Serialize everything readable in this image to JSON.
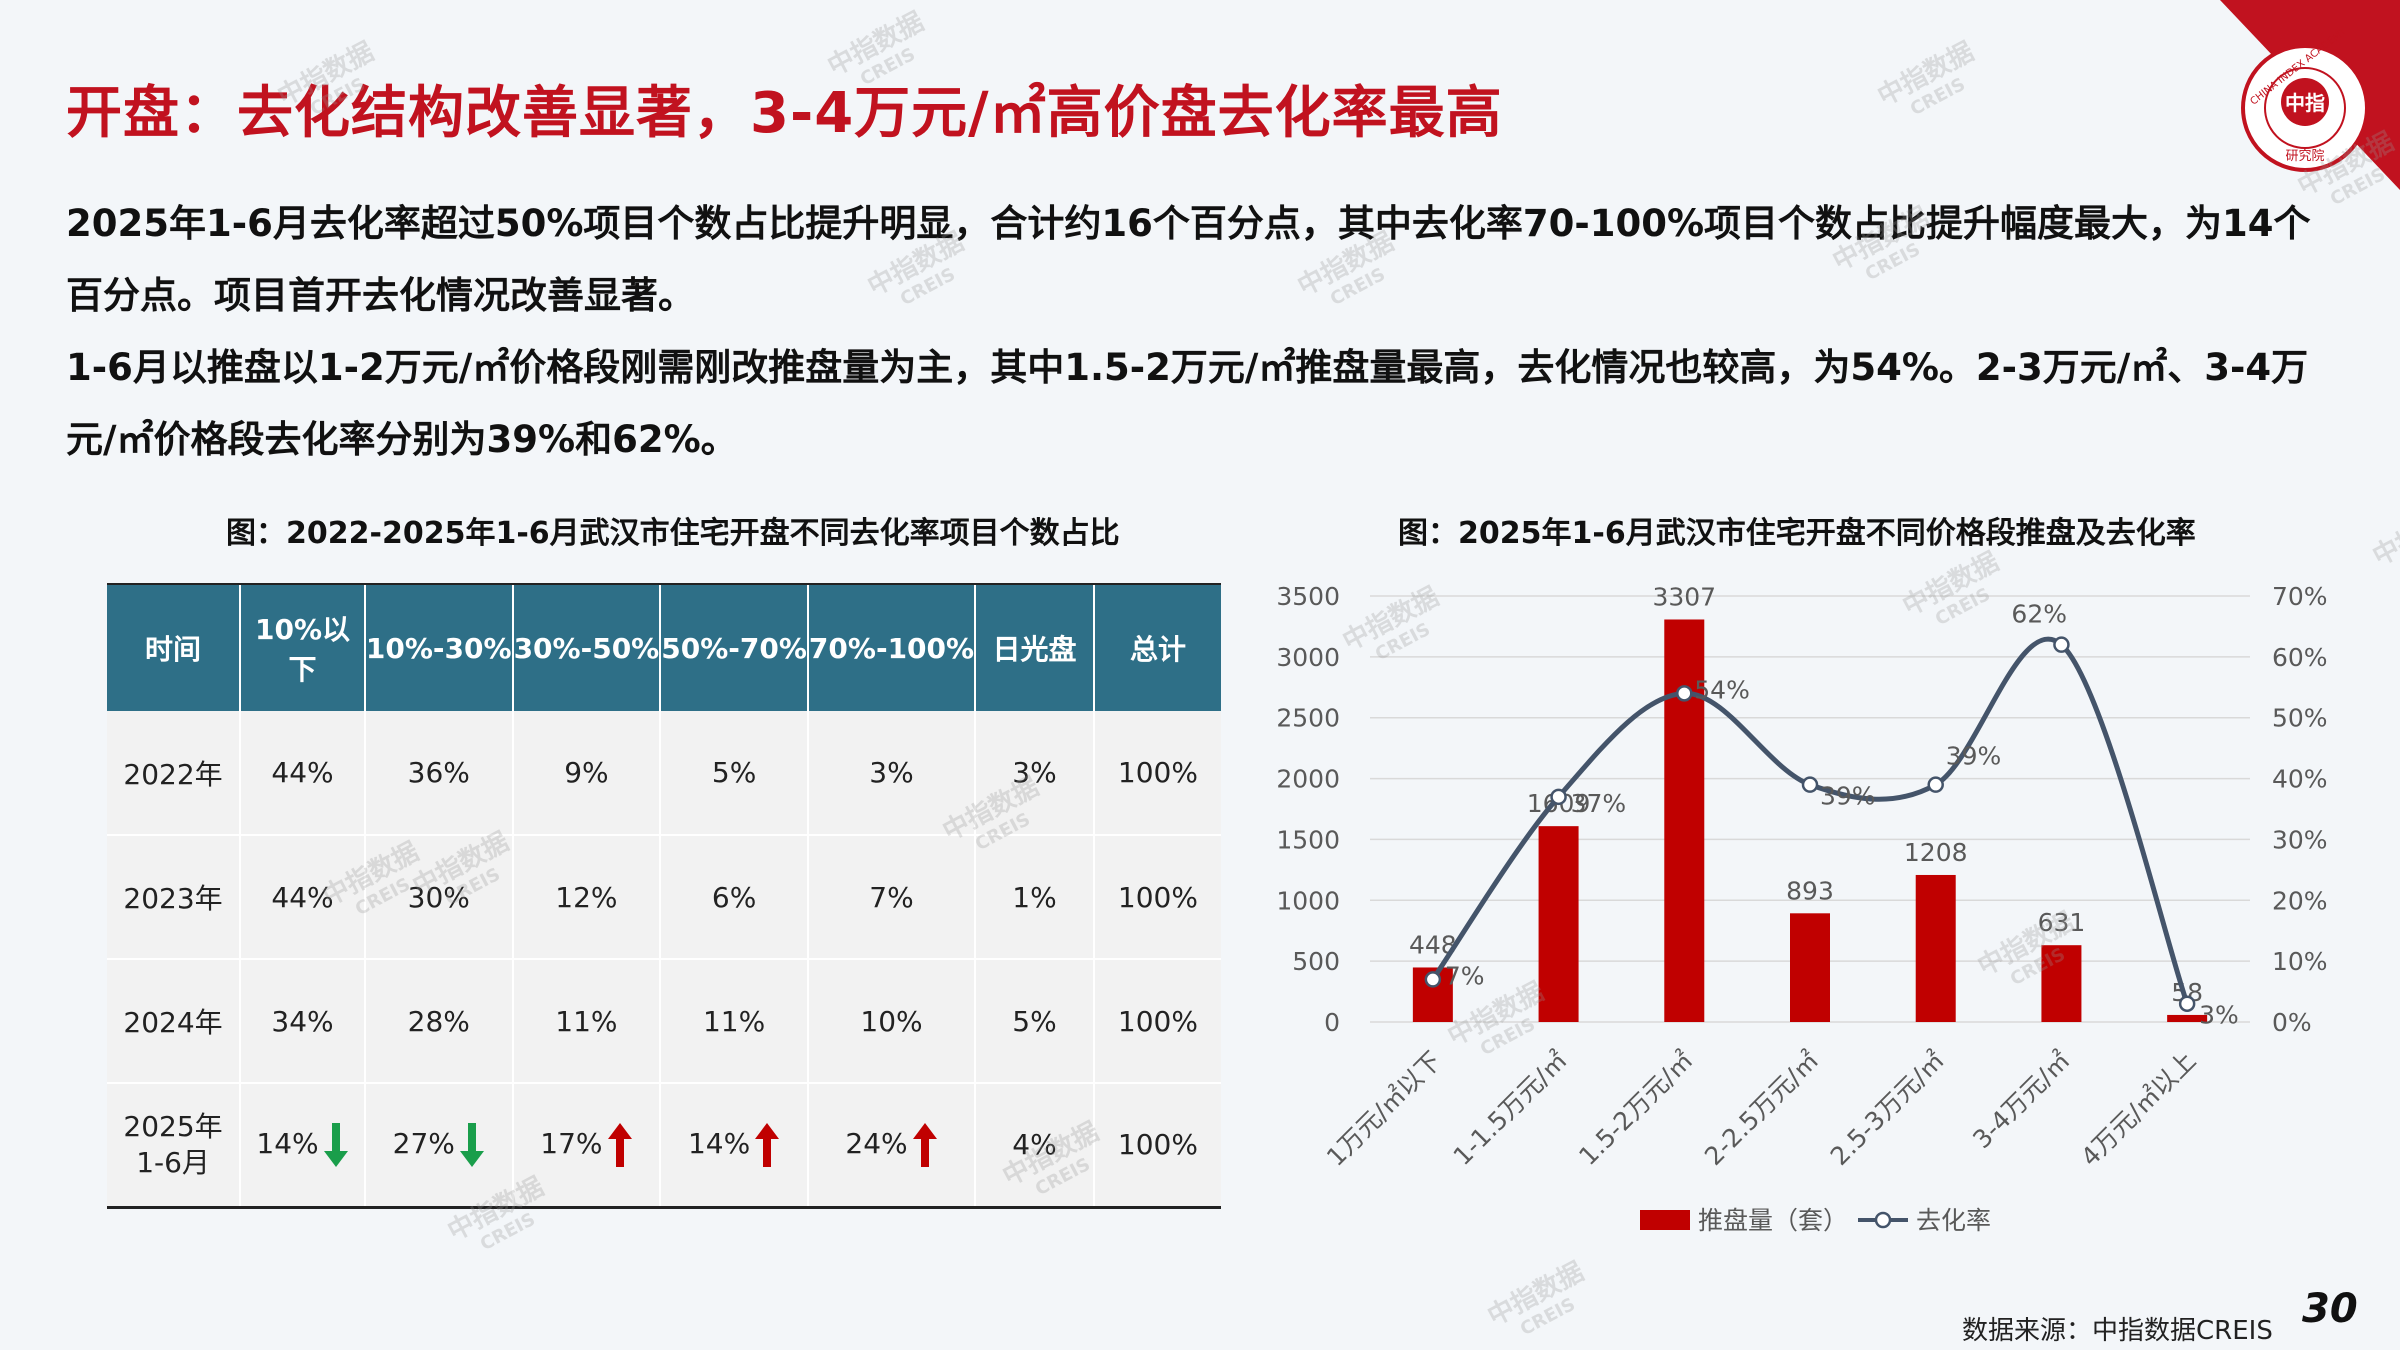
{
  "slide": {
    "title": "开盘：去化结构改善显著，3-4万元/㎡高价盘去化率最高",
    "paragraphs": [
      "2025年1-6月去化率超过50%项目个数占比提升明显，合计约16个百分点，其中去化率70-100%项目个数占比提升幅度最大，为14个百分点。项目首开去化情况改善显著。",
      "1-6月以推盘以1-2万元/㎡价格段刚需刚改推盘量为主，其中1.5-2万元/㎡推盘量最高，去化情况也较高，为54%。2-3万元/㎡、3-4万元/㎡价格段去化率分别为39%和62%。"
    ],
    "source": "数据来源：中指数据CREIS",
    "page_number": "30",
    "logo": {
      "text_cn": "中指",
      "text_ring": "CHINA INDEX ACADEMY",
      "text_sub": "研究院"
    },
    "watermark": {
      "cn": "中指数据",
      "en": "CREIS"
    },
    "colors": {
      "brand_red": "#c1121f",
      "table_header": "#2e6f87",
      "bar": "#c00000",
      "line": "#44546a",
      "up_arrow": "#c00000",
      "down_arrow": "#1a9e4b"
    }
  },
  "table": {
    "caption": "图：2022-2025年1-6月武汉市住宅开盘不同去化率项目个数占比",
    "headers": [
      "时间",
      "10%以下",
      "10%-30%",
      "30%-50%",
      "50%-70%",
      "70%-100%",
      "日光盘",
      "总计"
    ],
    "rows": [
      {
        "cells": [
          "2022年",
          "44%",
          "36%",
          "9%",
          "5%",
          "3%",
          "3%",
          "100%"
        ],
        "arrows": [
          "",
          "",
          "",
          "",
          "",
          "",
          "",
          ""
        ]
      },
      {
        "cells": [
          "2023年",
          "44%",
          "30%",
          "12%",
          "6%",
          "7%",
          "1%",
          "100%"
        ],
        "arrows": [
          "",
          "",
          "",
          "",
          "",
          "",
          "",
          ""
        ]
      },
      {
        "cells": [
          "2024年",
          "34%",
          "28%",
          "11%",
          "11%",
          "10%",
          "5%",
          "100%"
        ],
        "arrows": [
          "",
          "",
          "",
          "",
          "",
          "",
          "",
          ""
        ]
      },
      {
        "cells": [
          "2025年1-6月",
          "14%",
          "27%",
          "17%",
          "14%",
          "24%",
          "4%",
          "100%"
        ],
        "arrows": [
          "",
          "down",
          "down",
          "up",
          "up",
          "up",
          "",
          ""
        ]
      }
    ]
  },
  "chart_data": {
    "type": "bar",
    "title": "图：2025年1-6月武汉市住宅开盘不同价格段推盘及去化率",
    "categories": [
      "1万元/㎡以下",
      "1-1.5万元/㎡",
      "1.5-2万元/㎡",
      "2-2.5万元/㎡",
      "2.5-3万元/㎡",
      "3-4万元/㎡",
      "4万元/㎡以上"
    ],
    "series": [
      {
        "name": "推盘量（套）",
        "type": "bar",
        "axis": "left",
        "values": [
          448,
          1609,
          3307,
          893,
          1208,
          631,
          58
        ],
        "labels": [
          "448",
          "1609",
          "3307",
          "893",
          "1208",
          "631",
          "58"
        ]
      },
      {
        "name": "去化率",
        "type": "line",
        "axis": "right",
        "values": [
          7,
          37,
          54,
          39,
          39,
          62,
          3
        ],
        "labels": [
          "7%",
          "37%",
          "54%",
          "39%",
          "39%",
          "62%",
          "3%"
        ]
      }
    ],
    "y_left": {
      "min": 0,
      "max": 3500,
      "ticks": [
        "0",
        "500",
        "1000",
        "1500",
        "2000",
        "2500",
        "3000",
        "3500"
      ]
    },
    "y_right": {
      "min": 0,
      "max": 70,
      "ticks": [
        "0%",
        "10%",
        "20%",
        "30%",
        "40%",
        "50%",
        "60%",
        "70%"
      ]
    },
    "grid": true,
    "legend_position": "bottom"
  }
}
